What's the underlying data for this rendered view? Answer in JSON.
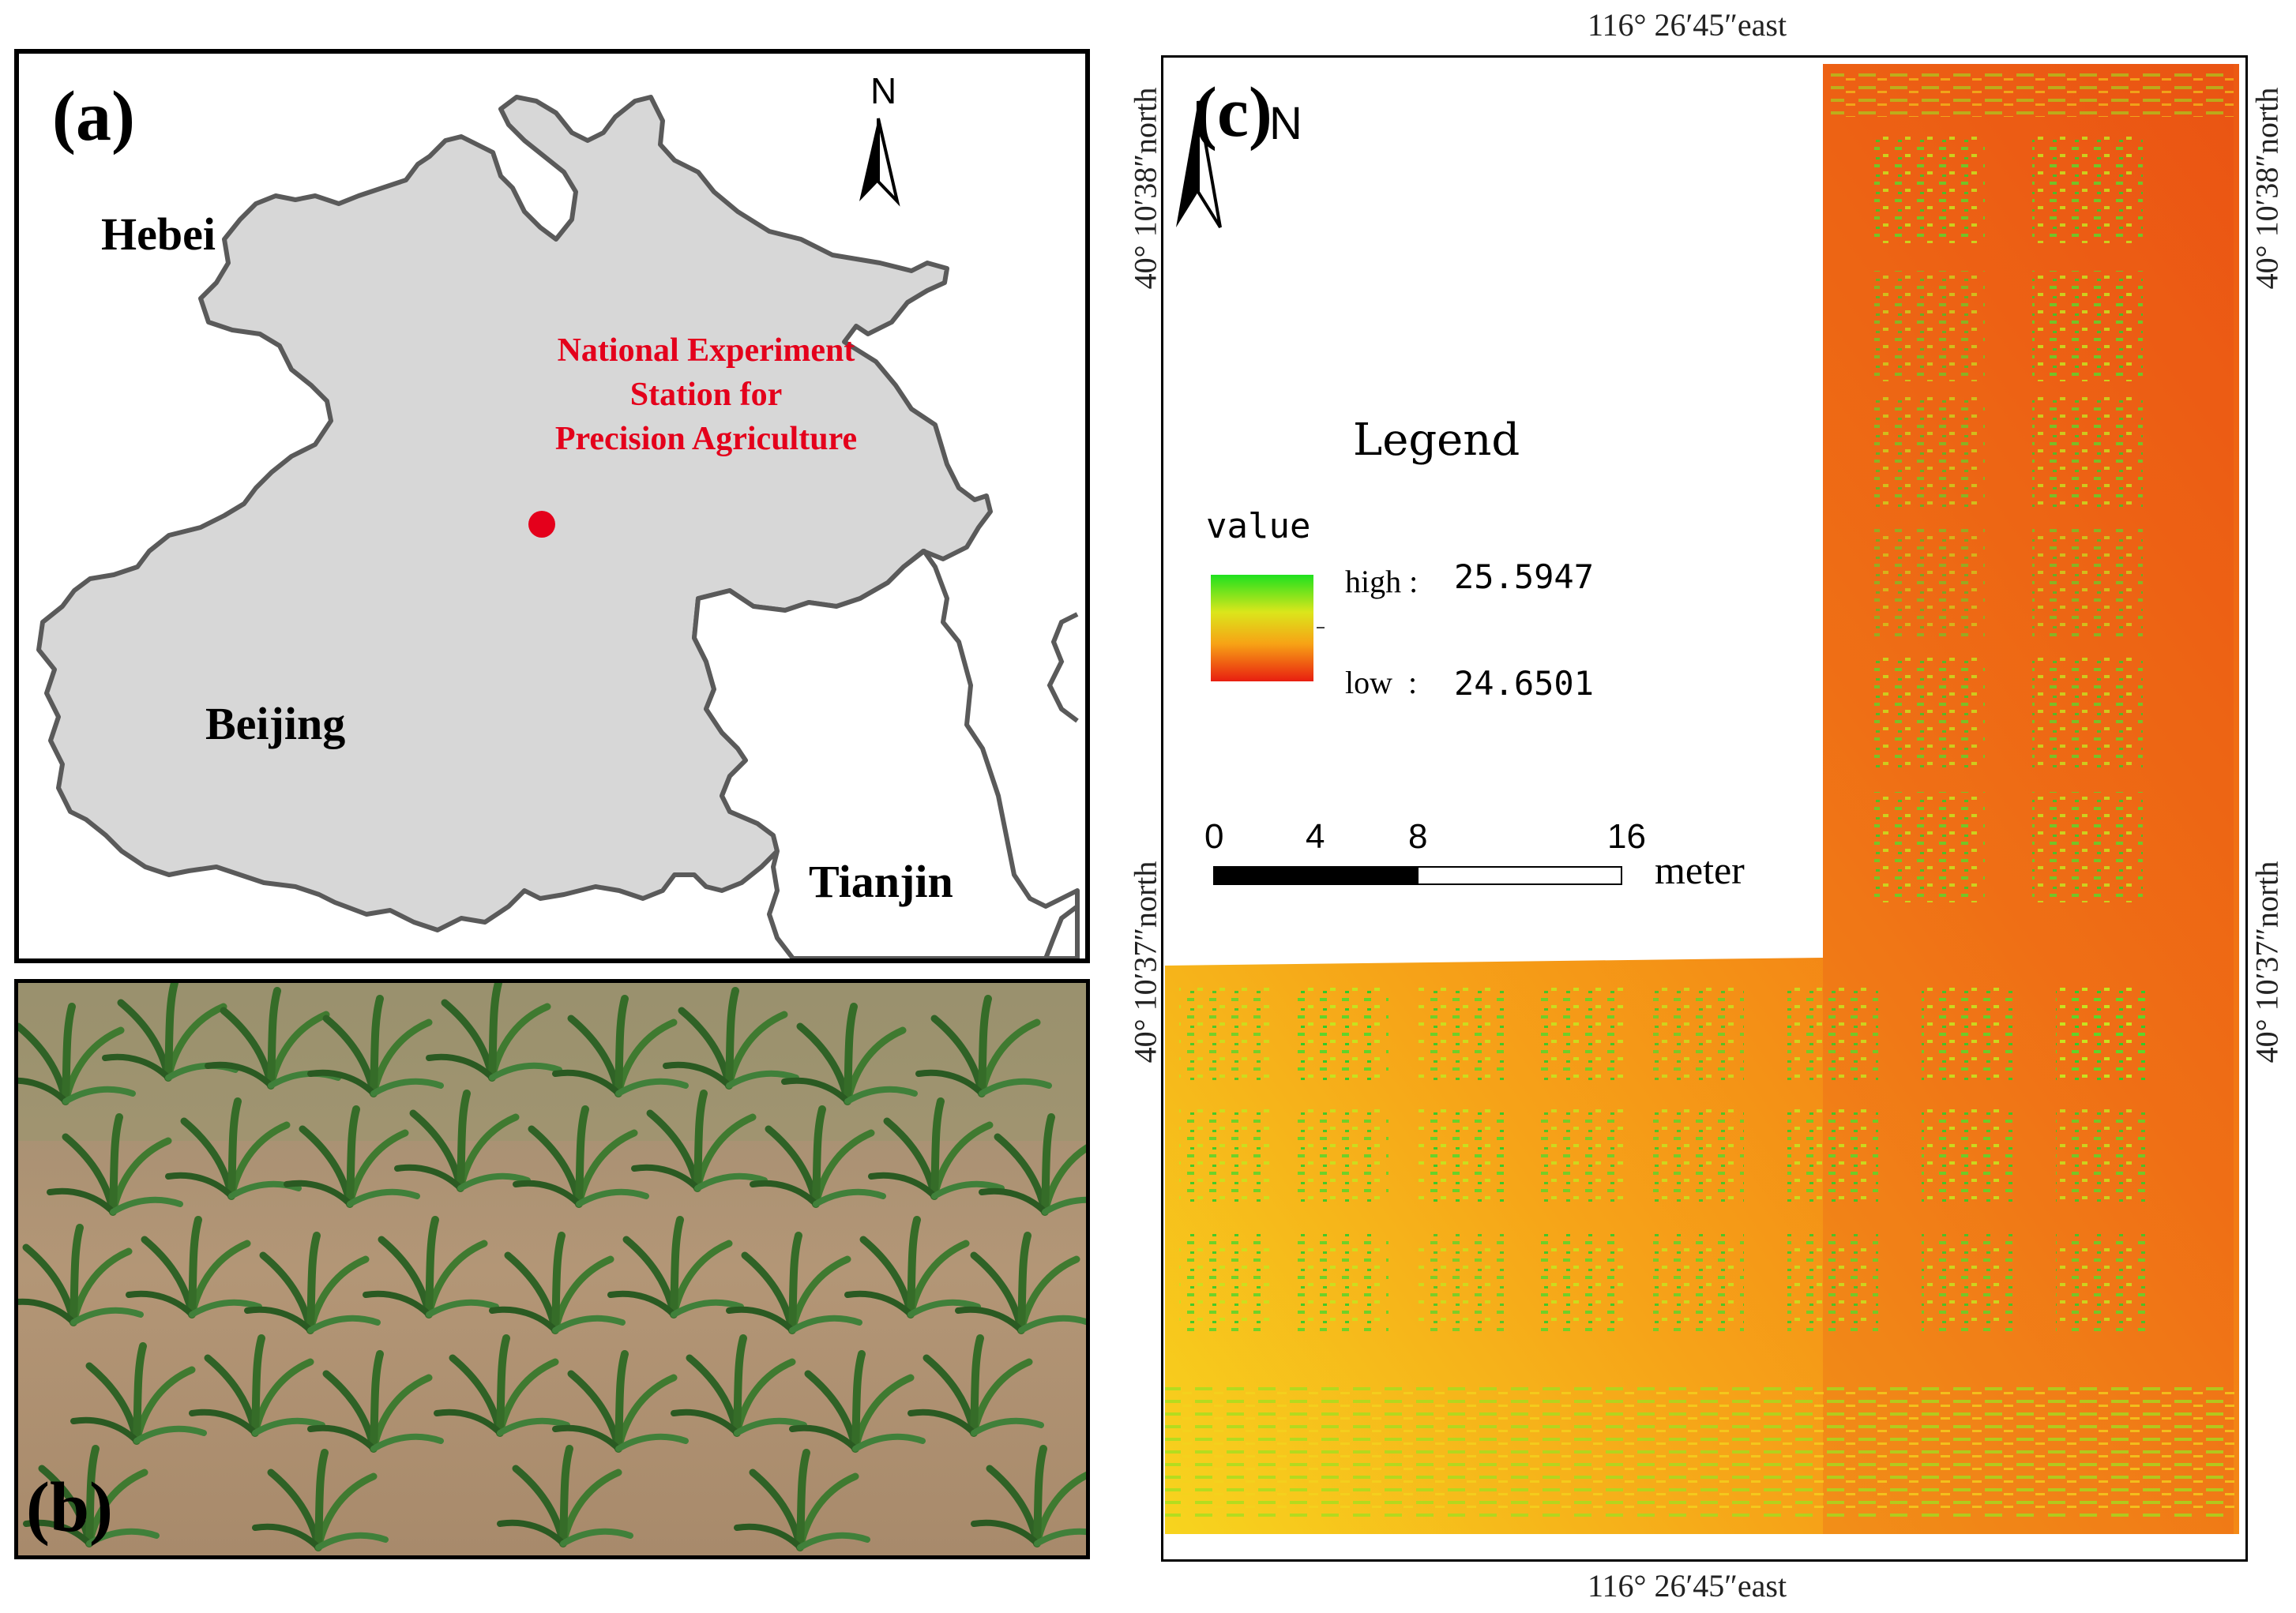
{
  "panel_a": {
    "label": "(a)",
    "north": "N",
    "regions": {
      "hebei": "Hebei",
      "beijing": "Beijing",
      "tianjin": "Tianjin"
    },
    "station_lines": [
      "National Experiment",
      "Station for",
      "Precision Agriculture"
    ],
    "colors": {
      "land": "#d7d7d7",
      "border": "#5a5a5a",
      "marker": "#e4001b"
    }
  },
  "panel_b": {
    "label": "(b)",
    "colors": {
      "soil": "#b09578",
      "leaf": "#3a6e2c"
    }
  },
  "panel_c": {
    "label": "(c)",
    "north": "N",
    "coords": {
      "top_east": "116°  26′45″east",
      "bottom_east": "116°  26′45″east",
      "upper_north": "40°  10′38″north",
      "lower_north": "40°  10′37″north"
    },
    "legend": {
      "title": "Legend",
      "field": "value",
      "high_label": "high :",
      "high_value": "25.5947",
      "low_label": "low  :",
      "low_value": "24.6501",
      "gradient": [
        "#1ee11e",
        "#dbe61b",
        "#f7a215",
        "#e81e10"
      ]
    },
    "scale_bar": {
      "ticks": [
        "0",
        "4",
        "8",
        "16"
      ],
      "unit": "meter"
    },
    "colors": {
      "field_orange": "#f37012",
      "field_yellow": "#f7c31b",
      "field_green": "#4cd72b",
      "field_red": "#e5361b"
    }
  }
}
